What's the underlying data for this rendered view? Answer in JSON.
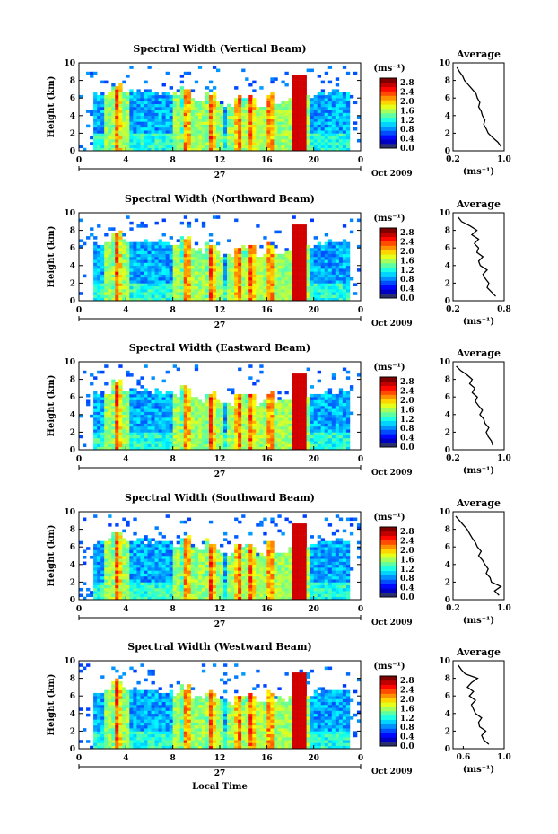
{
  "figure": {
    "xlabel_bottom": "Local Time",
    "day_label": "27",
    "month_label": "Oct 2009",
    "ylabel": "Height (km)",
    "colorbar_unit": "(ms⁻¹)",
    "average_title": "Average",
    "average_unit": "(ms⁻¹)"
  },
  "chart_data": [
    {
      "type": "heatmap",
      "title": "Spectral Width (Vertical Beam)",
      "ylabel": "Height (km)",
      "x_ticks": [
        "0",
        "4",
        "8",
        "12",
        "16",
        "20",
        "0"
      ],
      "y_ticks": [
        "0",
        "2",
        "4",
        "6",
        "8",
        "10"
      ],
      "xlim": [
        0,
        24
      ],
      "ylim": [
        0,
        10
      ],
      "colorbar": {
        "ticks": [
          "0.0",
          "0.4",
          "0.8",
          "1.2",
          "1.6",
          "2.0",
          "2.4",
          "2.8"
        ],
        "range": [
          0,
          3.0
        ]
      },
      "average": {
        "title": "Average",
        "x_ticks": [
          "0.2",
          "1.0"
        ],
        "xlim": [
          0.2,
          1.0
        ],
        "y_ticks": [
          "0",
          "2",
          "4",
          "6",
          "8",
          "10"
        ],
        "height": [
          0.5,
          1,
          1.5,
          2,
          2.5,
          3,
          3.5,
          4,
          4.5,
          5,
          5.5,
          6,
          6.5,
          7,
          7.5,
          8,
          8.5,
          9,
          9.5
        ],
        "value": [
          0.95,
          0.9,
          0.82,
          0.75,
          0.72,
          0.68,
          0.7,
          0.66,
          0.64,
          0.6,
          0.62,
          0.58,
          0.56,
          0.5,
          0.44,
          0.38,
          0.35,
          0.3,
          0.26
        ]
      }
    },
    {
      "type": "heatmap",
      "title": "Spectral Width (Northward Beam)",
      "ylabel": "Height (km)",
      "x_ticks": [
        "0",
        "4",
        "8",
        "12",
        "16",
        "20",
        "0"
      ],
      "y_ticks": [
        "0",
        "2",
        "4",
        "6",
        "8",
        "10"
      ],
      "xlim": [
        0,
        24
      ],
      "ylim": [
        0,
        10
      ],
      "colorbar": {
        "ticks": [
          "0.0",
          "0.4",
          "0.8",
          "1.2",
          "1.6",
          "2.0",
          "2.4",
          "2.8"
        ],
        "range": [
          0,
          3.0
        ]
      },
      "average": {
        "title": "Average",
        "x_ticks": [
          "0.2",
          "0.8"
        ],
        "xlim": [
          0.2,
          0.8
        ],
        "y_ticks": [
          "0",
          "2",
          "4",
          "6",
          "8",
          "10"
        ],
        "height": [
          0.5,
          1,
          1.5,
          2,
          2.5,
          3,
          3.5,
          4,
          4.5,
          5,
          5.5,
          6,
          6.5,
          7,
          7.5,
          8,
          8.5,
          9,
          9.5
        ],
        "value": [
          0.7,
          0.65,
          0.6,
          0.62,
          0.58,
          0.55,
          0.6,
          0.52,
          0.5,
          0.55,
          0.48,
          0.5,
          0.45,
          0.5,
          0.42,
          0.48,
          0.4,
          0.3,
          0.26
        ]
      }
    },
    {
      "type": "heatmap",
      "title": "Spectral Width (Eastward Beam)",
      "ylabel": "Height (km)",
      "x_ticks": [
        "0",
        "4",
        "8",
        "12",
        "16",
        "20",
        "0"
      ],
      "y_ticks": [
        "0",
        "2",
        "4",
        "6",
        "8",
        "10"
      ],
      "xlim": [
        0,
        24
      ],
      "ylim": [
        0,
        10
      ],
      "colorbar": {
        "ticks": [
          "0.0",
          "0.4",
          "0.8",
          "1.2",
          "1.6",
          "2.0",
          "2.4",
          "2.8"
        ],
        "range": [
          0,
          3.0
        ]
      },
      "average": {
        "title": "Average",
        "x_ticks": [
          "0.2",
          "1.0"
        ],
        "xlim": [
          0.2,
          1.0
        ],
        "y_ticks": [
          "0",
          "2",
          "4",
          "6",
          "8",
          "10"
        ],
        "height": [
          0.5,
          1,
          1.5,
          2,
          2.5,
          3,
          3.5,
          4,
          4.5,
          5,
          5.5,
          6,
          6.5,
          7,
          7.5,
          8,
          8.5,
          9,
          9.5
        ],
        "value": [
          0.82,
          0.8,
          0.75,
          0.72,
          0.76,
          0.7,
          0.68,
          0.62,
          0.66,
          0.6,
          0.55,
          0.58,
          0.5,
          0.54,
          0.46,
          0.5,
          0.42,
          0.32,
          0.25
        ]
      }
    },
    {
      "type": "heatmap",
      "title": "Spectral Width (Southward Beam)",
      "ylabel": "Height (km)",
      "x_ticks": [
        "0",
        "4",
        "8",
        "12",
        "16",
        "20",
        "0"
      ],
      "y_ticks": [
        "0",
        "2",
        "4",
        "6",
        "8",
        "10"
      ],
      "xlim": [
        0,
        24
      ],
      "ylim": [
        0,
        10
      ],
      "colorbar": {
        "ticks": [
          "0.0",
          "0.4",
          "0.8",
          "1.2",
          "1.6",
          "2.0",
          "2.4",
          "2.8"
        ],
        "range": [
          0,
          3.0
        ]
      },
      "average": {
        "title": "Average",
        "x_ticks": [
          "0.2",
          "1.0"
        ],
        "xlim": [
          0.2,
          1.0
        ],
        "y_ticks": [
          "0",
          "2",
          "4",
          "6",
          "8",
          "10"
        ],
        "height": [
          0.5,
          1,
          1.5,
          2,
          2.5,
          3,
          3.5,
          4,
          4.5,
          5,
          5.5,
          6,
          6.5,
          7,
          7.5,
          8,
          8.5,
          9,
          9.5
        ],
        "value": [
          0.92,
          0.85,
          0.95,
          0.8,
          0.78,
          0.72,
          0.75,
          0.7,
          0.66,
          0.6,
          0.64,
          0.58,
          0.55,
          0.5,
          0.46,
          0.42,
          0.36,
          0.3,
          0.24
        ]
      }
    },
    {
      "type": "heatmap",
      "title": "Spectral Width (Westward Beam)",
      "ylabel": "Height (km)",
      "x_ticks": [
        "0",
        "4",
        "8",
        "12",
        "16",
        "20",
        "0"
      ],
      "y_ticks": [
        "0",
        "2",
        "4",
        "6",
        "8",
        "10"
      ],
      "xlim": [
        0,
        24
      ],
      "ylim": [
        0,
        10
      ],
      "colorbar": {
        "ticks": [
          "0.0",
          "0.4",
          "0.8",
          "1.2",
          "1.6",
          "2.0",
          "2.4",
          "2.8"
        ],
        "range": [
          0,
          3.0
        ]
      },
      "average": {
        "title": "Average",
        "x_ticks": [
          "0.6",
          "1.0"
        ],
        "xlim": [
          0.5,
          1.0
        ],
        "y_ticks": [
          "0",
          "2",
          "4",
          "6",
          "8",
          "10"
        ],
        "height": [
          0.5,
          1,
          1.5,
          2,
          2.5,
          3,
          3.5,
          4,
          4.5,
          5,
          5.5,
          6,
          6.5,
          7,
          7.5,
          8,
          8.5,
          9,
          9.5
        ],
        "value": [
          0.85,
          0.8,
          0.78,
          0.82,
          0.76,
          0.75,
          0.78,
          0.72,
          0.7,
          0.68,
          0.72,
          0.66,
          0.7,
          0.64,
          0.68,
          0.74,
          0.62,
          0.58,
          0.55
        ]
      }
    }
  ]
}
